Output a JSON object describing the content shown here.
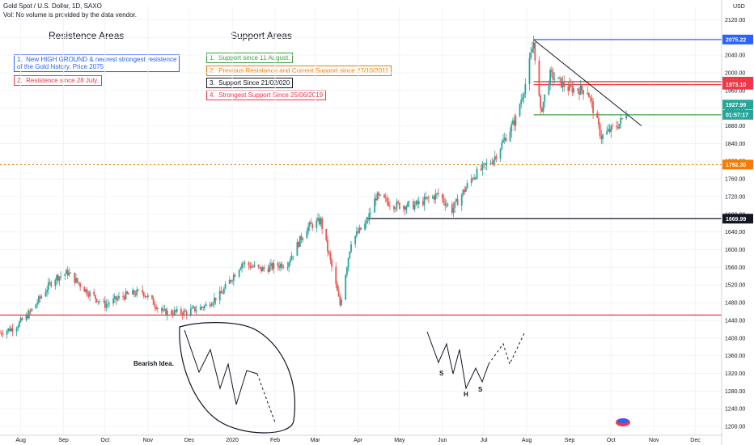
{
  "header": {
    "symbol": "Gold Spot / U.S. Dollar, 1D, SAXO",
    "volume_note": "Vol: No volume is provided by the data vendor."
  },
  "annotations": {
    "resistance_title": "Resistence Areas",
    "support_title": "Support Areas",
    "resistance_items": [
      {
        "text": "1.  New HIGH GROUND & nearest strongest resistence\nof the Gold history. Price 2075",
        "color": "#2962ff"
      },
      {
        "text": "2.  Resistence since 28 July.",
        "color": "#f23645"
      }
    ],
    "support_items": [
      {
        "text": "1.  Support since 11 August.",
        "color": "#43a047"
      },
      {
        "text": "2.  Previous Resistance and Current Support since 27/10/2011",
        "color": "#f57c00"
      },
      {
        "text": "3.  Support Since 21/02/020",
        "color": "#131722"
      },
      {
        "text": "4.  Strongest Support Since 25/06/2019",
        "color": "#f23645"
      }
    ],
    "bearish_label": "Bearish Idea.",
    "pattern_labels": [
      "S",
      "H",
      "S"
    ]
  },
  "price_tags": [
    {
      "value": 2075.22,
      "label": "2075.22",
      "color": "#2962ff"
    },
    {
      "value": 1979.89,
      "label": "1979.89",
      "color": "#f23645"
    },
    {
      "value": 1973.1,
      "label": "1973.10",
      "color": "#f23645"
    },
    {
      "value": 1927.99,
      "label": "1927.99",
      "color": "#26a69a"
    },
    {
      "value": 1905.0,
      "label": "01:57:17",
      "color": "#26a69a"
    },
    {
      "value": 1792.3,
      "label": "1792.30",
      "color": "#f57c00"
    },
    {
      "value": 1669.99,
      "label": "1669.99",
      "color": "#131722"
    }
  ],
  "chart_data": {
    "type": "candlestick",
    "title": "Gold Spot / U.S. Dollar, 1D, SAXO",
    "currency": "USD",
    "ylim": [
      1180,
      2150
    ],
    "y_ticks": [
      1200,
      1240,
      1280,
      1320,
      1360,
      1400,
      1440,
      1480,
      1520,
      1560,
      1600,
      1640,
      1680,
      1720,
      1760,
      1800,
      1840,
      1880,
      1920,
      1960,
      2000,
      2040,
      2080,
      2120
    ],
    "x_ticks": [
      "Aug",
      "Sep",
      "Oct",
      "Nov",
      "Dec",
      "2020",
      "Feb",
      "Mar",
      "Apr",
      "May",
      "Jun",
      "Jul",
      "Aug",
      "Sep",
      "Oct",
      "Nov",
      "Dec"
    ],
    "x_tick_dates": [
      "2019-08-01",
      "2019-09-01",
      "2019-10-01",
      "2019-11-01",
      "2019-12-01",
      "2020-01-01",
      "2020-02-01",
      "2020-03-01",
      "2020-04-01",
      "2020-05-01",
      "2020-06-01",
      "2020-07-01",
      "2020-08-01",
      "2020-09-01",
      "2020-10-01",
      "2020-11-01",
      "2020-12-01"
    ],
    "x_range": [
      "2019-07-17",
      "2020-12-20"
    ],
    "price_path": [
      [
        "2019-07-17",
        1412
      ],
      [
        "2019-07-28",
        1425
      ],
      [
        "2019-08-07",
        1455
      ],
      [
        "2019-08-25",
        1535
      ],
      [
        "2019-09-04",
        1548
      ],
      [
        "2019-09-18",
        1505
      ],
      [
        "2019-10-01",
        1475
      ],
      [
        "2019-10-14",
        1495
      ],
      [
        "2019-10-28",
        1505
      ],
      [
        "2019-11-12",
        1458
      ],
      [
        "2019-11-28",
        1458
      ],
      [
        "2019-12-12",
        1472
      ],
      [
        "2019-12-24",
        1500
      ],
      [
        "2020-01-08",
        1570
      ],
      [
        "2020-01-22",
        1555
      ],
      [
        "2020-02-10",
        1570
      ],
      [
        "2020-02-24",
        1650
      ],
      [
        "2020-03-05",
        1665
      ],
      [
        "2020-03-13",
        1560
      ],
      [
        "2020-03-19",
        1475
      ],
      [
        "2020-03-27",
        1620
      ],
      [
        "2020-04-07",
        1660
      ],
      [
        "2020-04-14",
        1720
      ],
      [
        "2020-04-28",
        1700
      ],
      [
        "2020-05-12",
        1700
      ],
      [
        "2020-05-29",
        1725
      ],
      [
        "2020-06-08",
        1690
      ],
      [
        "2020-06-23",
        1765
      ],
      [
        "2020-07-08",
        1805
      ],
      [
        "2020-07-24",
        1895
      ],
      [
        "2020-07-31",
        1975
      ],
      [
        "2020-08-06",
        2070
      ],
      [
        "2020-08-11",
        1910
      ],
      [
        "2020-08-18",
        1995
      ],
      [
        "2020-08-31",
        1965
      ],
      [
        "2020-09-14",
        1960
      ],
      [
        "2020-09-24",
        1855
      ],
      [
        "2020-10-07",
        1885
      ],
      [
        "2020-10-13",
        1915
      ]
    ],
    "horizontal_levels": [
      {
        "name": "Resistance 2075",
        "value": 2075.22,
        "color": "#2962ff",
        "from": "2020-08-06"
      },
      {
        "name": "Resistance since 28 July",
        "value": 1979.89,
        "color": "#f23645",
        "from": "2020-08-06"
      },
      {
        "name": "Resistance since 28 July",
        "value": 1973.1,
        "color": "#f23645",
        "from": "2020-08-06"
      },
      {
        "name": "Support since 11 August",
        "value": 1905.0,
        "color": "#43a047",
        "from": "2020-08-06"
      },
      {
        "name": "Previous Resistance and Current Support since 27/10/2011",
        "value": 1792.3,
        "color": "#f57c00",
        "from": "2019-07-17",
        "dashed": true
      },
      {
        "name": "Support Since 21/02/020",
        "value": 1669.99,
        "color": "#131722",
        "from": "2020-04-07"
      },
      {
        "name": "Strongest Support Since 25/06/2019",
        "value": 1452,
        "color": "#f23645",
        "from": "2019-07-17"
      }
    ],
    "trendline": [
      [
        "2020-08-06",
        2075
      ],
      [
        "2020-10-23",
        1880
      ]
    ],
    "grid": true
  }
}
